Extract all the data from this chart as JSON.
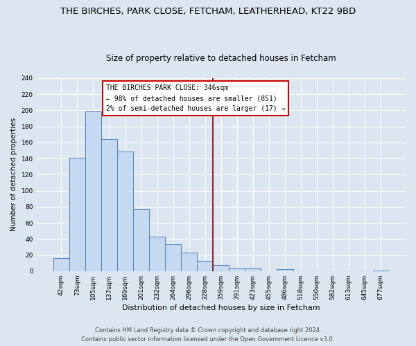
{
  "title": "THE BIRCHES, PARK CLOSE, FETCHAM, LEATHERHEAD, KT22 9BD",
  "subtitle": "Size of property relative to detached houses in Fetcham",
  "xlabel": "Distribution of detached houses by size in Fetcham",
  "ylabel": "Number of detached properties",
  "bar_labels": [
    "42sqm",
    "73sqm",
    "105sqm",
    "137sqm",
    "169sqm",
    "201sqm",
    "232sqm",
    "264sqm",
    "296sqm",
    "328sqm",
    "359sqm",
    "391sqm",
    "423sqm",
    "455sqm",
    "486sqm",
    "518sqm",
    "550sqm",
    "582sqm",
    "613sqm",
    "645sqm",
    "677sqm"
  ],
  "bar_values": [
    16,
    141,
    199,
    164,
    149,
    77,
    43,
    33,
    23,
    13,
    8,
    4,
    4,
    0,
    2,
    0,
    0,
    0,
    0,
    0,
    1
  ],
  "bar_color": "#c5d9f1",
  "bar_edge_color": "#4f81bd",
  "marker_color": "#7f0000",
  "annotation_title": "THE BIRCHES PARK CLOSE: 346sqm",
  "annotation_line1": "← 98% of detached houses are smaller (851)",
  "annotation_line2": "2% of semi-detached houses are larger (17) →",
  "annotation_box_color": "#ffffff",
  "annotation_box_edge_color": "#cc0000",
  "ylim": [
    0,
    240
  ],
  "yticks": [
    0,
    20,
    40,
    60,
    80,
    100,
    120,
    140,
    160,
    180,
    200,
    220,
    240
  ],
  "background_color": "#dce6f1",
  "grid_color": "#ffffff",
  "footer_line1": "Contains HM Land Registry data © Crown copyright and database right 2024.",
  "footer_line2": "Contains public sector information licensed under the Open Government Licence v3.0.",
  "title_fontsize": 9.5,
  "subtitle_fontsize": 8.5,
  "xlabel_fontsize": 8,
  "ylabel_fontsize": 7.5,
  "tick_fontsize": 6.5,
  "annotation_fontsize": 7,
  "footer_fontsize": 6
}
